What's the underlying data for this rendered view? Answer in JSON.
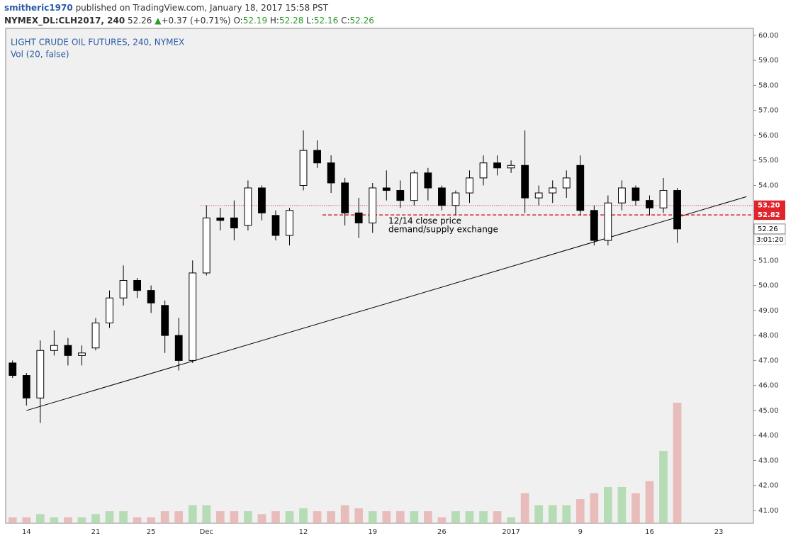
{
  "header": {
    "author": "smitheric1970",
    "published": "published on TradingView.com, January 18, 2017 15:58 PST",
    "symbol": "NYMEX_DL:CLH2017, 240",
    "last": "52.26",
    "arrow": "▲",
    "change": "+0.37 (+0.71%)",
    "o_label": "O:",
    "o": "52.19",
    "h_label": "H:",
    "h": "52.28",
    "l_label": "L:",
    "l": "52.16",
    "c_label": "C:",
    "c": "52.26"
  },
  "chart_data": {
    "type": "candlestick",
    "title": "LIGHT CRUDE OIL FUTURES, 240, NYMEX",
    "subtitle": "Vol (20, false)",
    "categories": [
      null,
      "14",
      null,
      null,
      null,
      null,
      "21",
      null,
      null,
      null,
      "25",
      null,
      null,
      null,
      "Dec",
      null,
      null,
      null,
      null,
      null,
      null,
      "12",
      null,
      null,
      null,
      null,
      "19",
      null,
      null,
      null,
      null,
      "26",
      null,
      null,
      null,
      null,
      "2017",
      null,
      null,
      null,
      null,
      "9",
      null,
      null,
      null,
      null,
      "16",
      null,
      null,
      null,
      null,
      "23",
      null,
      null
    ],
    "open": [
      46.9,
      46.4,
      45.5,
      47.4,
      47.6,
      47.2,
      47.5,
      48.5,
      49.5,
      50.2,
      49.8,
      49.2,
      48.0,
      47.0,
      50.5,
      52.7,
      52.7,
      52.4,
      53.9,
      52.8,
      52.0,
      54.0,
      55.4,
      54.9,
      54.1,
      52.9,
      52.5,
      53.9,
      53.8,
      53.4,
      54.5,
      53.9,
      53.2,
      53.7,
      54.3,
      54.9,
      54.7,
      54.8,
      53.5,
      53.7,
      53.9,
      54.8,
      53.0,
      51.8,
      53.3,
      53.9,
      53.4,
      53.1,
      53.8,
      null,
      null,
      null,
      null,
      null
    ],
    "high": [
      47.0,
      46.5,
      47.8,
      48.2,
      47.9,
      47.6,
      48.7,
      49.8,
      50.8,
      50.3,
      50.0,
      49.4,
      48.7,
      51.0,
      53.2,
      53.1,
      53.4,
      54.2,
      54.0,
      53.0,
      53.1,
      56.2,
      55.8,
      55.2,
      54.3,
      53.5,
      54.1,
      54.6,
      54.2,
      54.6,
      54.7,
      54.0,
      53.8,
      54.6,
      55.2,
      55.2,
      55.0,
      56.2,
      54.0,
      54.2,
      54.6,
      55.2,
      53.2,
      53.6,
      54.2,
      54.0,
      53.6,
      54.3,
      53.9,
      null,
      null,
      null,
      null,
      null
    ],
    "low": [
      46.3,
      45.2,
      44.5,
      47.2,
      46.8,
      46.8,
      47.4,
      48.3,
      49.2,
      49.5,
      48.9,
      47.3,
      46.6,
      46.9,
      50.4,
      52.2,
      51.8,
      52.2,
      52.6,
      51.8,
      51.6,
      53.8,
      54.7,
      53.7,
      52.4,
      51.9,
      52.1,
      53.4,
      53.1,
      53.2,
      53.4,
      53.0,
      52.8,
      53.3,
      54.0,
      54.4,
      54.5,
      52.9,
      53.2,
      53.3,
      53.5,
      52.8,
      51.6,
      51.6,
      53.0,
      53.2,
      52.8,
      52.9,
      51.7,
      null,
      null,
      null,
      null,
      null
    ],
    "close": [
      46.4,
      45.5,
      47.4,
      47.6,
      47.2,
      47.3,
      48.5,
      49.5,
      50.2,
      49.8,
      49.3,
      48.0,
      47.0,
      50.5,
      52.7,
      52.6,
      52.3,
      53.9,
      52.9,
      52.0,
      53.0,
      55.4,
      54.9,
      54.1,
      52.9,
      52.5,
      53.9,
      53.8,
      53.4,
      54.5,
      53.9,
      53.2,
      53.7,
      54.3,
      54.9,
      54.7,
      54.8,
      53.5,
      53.7,
      53.9,
      54.3,
      53.0,
      51.8,
      53.3,
      53.9,
      53.4,
      53.1,
      53.8,
      52.26,
      null,
      null,
      null,
      null,
      null
    ],
    "volume": [
      1,
      1,
      1.5,
      1,
      1,
      1,
      1.5,
      2,
      2,
      1,
      1,
      2,
      2,
      3,
      3,
      2,
      2,
      2,
      1.5,
      2,
      2,
      2.5,
      2,
      2,
      3,
      2.5,
      2,
      2,
      2,
      2,
      2,
      1,
      2,
      2,
      2,
      2,
      1,
      5,
      3,
      3,
      3,
      4,
      5,
      6,
      6,
      5,
      7,
      12,
      20,
      null,
      null,
      null,
      null,
      null
    ],
    "up_color": "#ffffff",
    "down_color": "#000000",
    "wick_color": "#000000",
    "vol_up_color": "#a8d8a8",
    "vol_down_color": "#e8b0b0",
    "ylim": [
      40.49,
      60.28
    ],
    "yticks": [
      {
        "value": 41,
        "label": "41.00"
      },
      {
        "value": 42,
        "label": "42.00"
      },
      {
        "value": 43,
        "label": "43.00"
      },
      {
        "value": 44,
        "label": "44.00"
      },
      {
        "value": 45,
        "label": "45.00"
      },
      {
        "value": 46,
        "label": "46.00"
      },
      {
        "value": 47,
        "label": "47.00"
      },
      {
        "value": 48,
        "label": "48.00"
      },
      {
        "value": 49,
        "label": "49.00"
      },
      {
        "value": 50,
        "label": "50.00"
      },
      {
        "value": 51,
        "label": "51.00"
      },
      {
        "value": 52,
        "label": "52.00"
      },
      {
        "value": 53,
        "label": "53.00"
      },
      {
        "value": 54,
        "label": "54.00"
      },
      {
        "value": 55,
        "label": "55.00"
      },
      {
        "value": 56,
        "label": "56.00"
      },
      {
        "value": 57,
        "label": "57.00"
      },
      {
        "value": 58,
        "label": "58.00"
      },
      {
        "value": 59,
        "label": "59.00"
      },
      {
        "value": 60,
        "label": "60.00"
      }
    ],
    "levels": [
      {
        "value": 53.2,
        "label": "53.20",
        "style": "dotted",
        "color": "#e0242a"
      },
      {
        "value": 52.82,
        "label": "52.82",
        "style": "dashed",
        "color": "#e0242a",
        "note": [
          "12/14 close price",
          "demand/supply exchange"
        ]
      }
    ],
    "trendline": [
      45.0,
      53.55
    ],
    "last_price": {
      "value": 52.26,
      "label": "52.26"
    },
    "countdown": "3:01:20"
  }
}
